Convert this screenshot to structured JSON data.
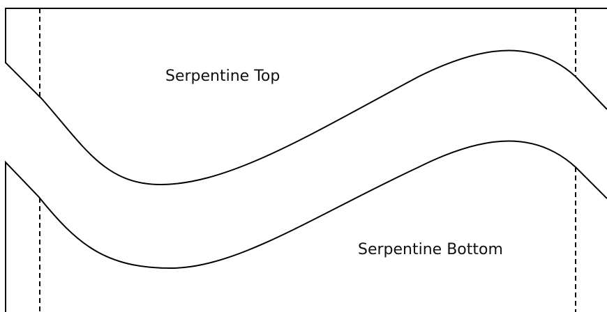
{
  "labels": {
    "top": "Serpentine Top",
    "bottom": "Serpentine Bottom"
  }
}
